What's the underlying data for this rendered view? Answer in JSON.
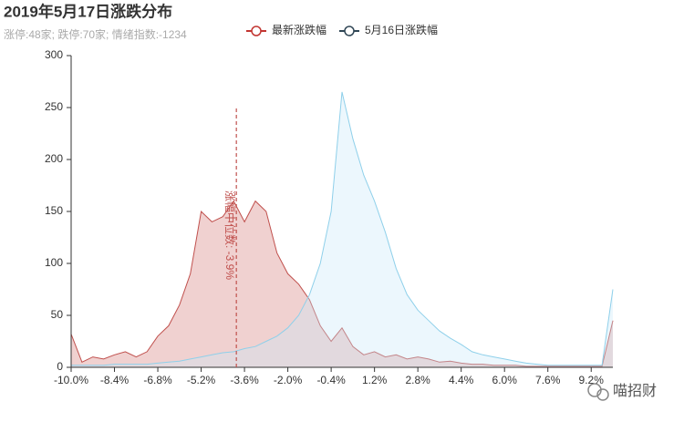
{
  "chart_data": {
    "type": "area",
    "title": "2019年5月17日涨跌分布",
    "subtitle": "涨停:48家; 跌停:70家; 情绪指数:-1234",
    "watermark": "喵招财",
    "x": [
      -10,
      -9.6,
      -9.2,
      -8.8,
      -8.4,
      -8,
      -7.6,
      -7.2,
      -6.8,
      -6.4,
      -6,
      -5.6,
      -5.2,
      -4.8,
      -4.4,
      -4,
      -3.6,
      -3.2,
      -2.8,
      -2.4,
      -2,
      -1.6,
      -1.2,
      -0.8,
      -0.4,
      0,
      0.4,
      0.8,
      1.2,
      1.6,
      2,
      2.4,
      2.8,
      3.2,
      3.6,
      4,
      4.4,
      4.8,
      5.2,
      5.6,
      6,
      6.4,
      6.8,
      7.2,
      7.6,
      8,
      8.4,
      8.8,
      9.2,
      9.6,
      10
    ],
    "series": [
      {
        "name": "最新涨跌幅",
        "color": "#c0504d",
        "fill": "rgba(213,122,120,0.35)",
        "legend_color": "#c23531",
        "values": [
          32,
          5,
          10,
          8,
          12,
          15,
          10,
          15,
          30,
          40,
          60,
          90,
          150,
          140,
          145,
          160,
          140,
          160,
          150,
          110,
          90,
          80,
          65,
          40,
          25,
          38,
          20,
          12,
          15,
          10,
          12,
          8,
          10,
          8,
          5,
          6,
          4,
          3,
          3,
          2,
          2,
          2,
          1,
          1,
          1,
          1,
          1,
          1,
          1,
          1,
          45
        ]
      },
      {
        "name": "5月16日涨跌幅",
        "color": "#8fd0ea",
        "fill": "rgba(200,232,248,0.35)",
        "legend_color": "#2f4554",
        "values": [
          2,
          2,
          2,
          2,
          3,
          3,
          3,
          3,
          4,
          5,
          6,
          8,
          10,
          12,
          14,
          15,
          18,
          20,
          25,
          30,
          38,
          50,
          70,
          100,
          150,
          265,
          220,
          185,
          160,
          130,
          95,
          70,
          55,
          45,
          35,
          28,
          22,
          15,
          12,
          10,
          8,
          6,
          4,
          3,
          2,
          2,
          2,
          2,
          2,
          2,
          75
        ]
      }
    ],
    "median": {
      "value": -3.9,
      "label": "涨幅中位数: -3.9%",
      "color": "#c0504d"
    },
    "xlim": [
      -10,
      10
    ],
    "xticks": [
      {
        "value": -10,
        "label": "-10.0%"
      },
      {
        "value": -8.4,
        "label": "-8.4%"
      },
      {
        "value": -6.8,
        "label": "-6.8%"
      },
      {
        "value": -5.2,
        "label": "-5.2%"
      },
      {
        "value": -3.6,
        "label": "-3.6%"
      },
      {
        "value": -2,
        "label": "-2.0%"
      },
      {
        "value": -0.4,
        "label": "-0.4%"
      },
      {
        "value": 1.2,
        "label": "1.2%"
      },
      {
        "value": 2.8,
        "label": "2.8%"
      },
      {
        "value": 4.4,
        "label": "4.4%"
      },
      {
        "value": 6,
        "label": "6.0%"
      },
      {
        "value": 7.6,
        "label": "7.6%"
      },
      {
        "value": 9.2,
        "label": "9.2%"
      }
    ],
    "ylim": [
      0,
      300
    ],
    "yticks": [
      0,
      50,
      100,
      150,
      200,
      250,
      300
    ],
    "grid": false
  }
}
